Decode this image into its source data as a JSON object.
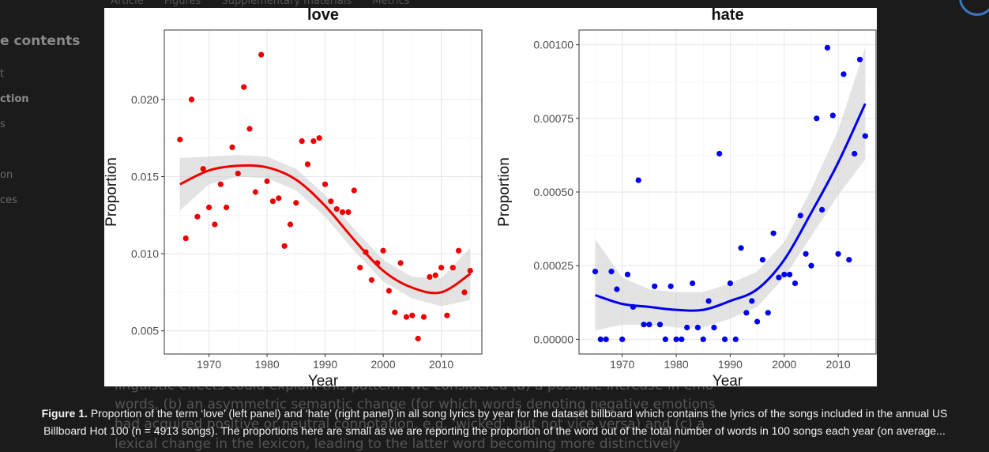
{
  "page": {
    "tabs": [
      "Article",
      "Figures",
      "Supplementary materials",
      "Metrics"
    ],
    "toc_title": "e contents",
    "toc_items": [
      "t",
      "ction",
      "s",
      "on",
      "ces"
    ],
    "ghost_lines": [
      "linguistic effects could explain this pattern. We considered (a) a possible increase in emo",
      "words, (b) an asymmetric semantic change (for which words denoting negative emotions",
      "had acquired positive or neutral connotation, e.g. 'wicked', but not vice versa) and (c) a",
      "lexical change in the lexicon, leading to the latter word becoming more distinctively"
    ]
  },
  "caption": {
    "label": "Figure 1.",
    "line1": " Proportion of the term ‘love’ (left panel) and ‘hate’ (right panel) in all song lyrics by year for the dataset billboard which contains the lyrics of the songs included in the annual US",
    "line2": "Billboard Hot 100 (n = 4913 songs). The proportions here are small as we are reporting the proportion of the word out of the total number of words in 100 songs each year (on average..."
  },
  "chart_data": [
    {
      "type": "scatter",
      "title": "love",
      "xlabel": "Year",
      "ylabel": "Proportion",
      "xlim": [
        1962,
        1967
      ],
      "ylim": [
        0.0035,
        0.0245
      ],
      "xticks": [
        1970,
        1980,
        1990,
        2000,
        2010
      ],
      "yticks": [
        0.005,
        0.01,
        0.015,
        0.02
      ],
      "ytick_labels": [
        "0.005",
        "0.010",
        "0.015",
        "0.020"
      ],
      "color": "#ee0000",
      "points": [
        [
          1965,
          0.0174
        ],
        [
          1966,
          0.011
        ],
        [
          1967,
          0.02
        ],
        [
          1968,
          0.0124
        ],
        [
          1969,
          0.0155
        ],
        [
          1970,
          0.013
        ],
        [
          1971,
          0.0119
        ],
        [
          1972,
          0.0145
        ],
        [
          1973,
          0.013
        ],
        [
          1974,
          0.0169
        ],
        [
          1975,
          0.0152
        ],
        [
          1976,
          0.0208
        ],
        [
          1977,
          0.0181
        ],
        [
          1978,
          0.014
        ],
        [
          1979,
          0.0229
        ],
        [
          1980,
          0.0147
        ],
        [
          1981,
          0.0134
        ],
        [
          1982,
          0.0136
        ],
        [
          1983,
          0.0105
        ],
        [
          1984,
          0.0119
        ],
        [
          1985,
          0.0133
        ],
        [
          1986,
          0.0173
        ],
        [
          1987,
          0.0158
        ],
        [
          1988,
          0.0173
        ],
        [
          1989,
          0.0175
        ],
        [
          1990,
          0.0145
        ],
        [
          1991,
          0.0134
        ],
        [
          1992,
          0.0129
        ],
        [
          1993,
          0.0127
        ],
        [
          1994,
          0.0127
        ],
        [
          1995,
          0.0141
        ],
        [
          1996,
          0.0091
        ],
        [
          1997,
          0.0101
        ],
        [
          1998,
          0.0083
        ],
        [
          1999,
          0.0094
        ],
        [
          2000,
          0.0102
        ],
        [
          2001,
          0.0076
        ],
        [
          2002,
          0.0062
        ],
        [
          2003,
          0.0094
        ],
        [
          2004,
          0.0059
        ],
        [
          2005,
          0.006
        ],
        [
          2006,
          0.0045
        ],
        [
          2007,
          0.0059
        ],
        [
          2008,
          0.0085
        ],
        [
          2009,
          0.0086
        ],
        [
          2010,
          0.0091
        ],
        [
          2011,
          0.006
        ],
        [
          2012,
          0.0091
        ],
        [
          2013,
          0.0102
        ],
        [
          2014,
          0.0075
        ],
        [
          2015,
          0.0089
        ]
      ],
      "smooth": {
        "color": "#ee0000",
        "x": [
          1965,
          1970,
          1975,
          1980,
          1985,
          1990,
          1995,
          2000,
          2005,
          2010,
          2015
        ],
        "y": [
          0.0145,
          0.0154,
          0.0157,
          0.0156,
          0.0148,
          0.0131,
          0.0109,
          0.0089,
          0.0078,
          0.0075,
          0.0087
        ],
        "band_low": [
          0.0128,
          0.0145,
          0.015,
          0.0149,
          0.0141,
          0.0124,
          0.0102,
          0.0082,
          0.0071,
          0.0066,
          0.007
        ],
        "band_high": [
          0.0162,
          0.0163,
          0.0164,
          0.0163,
          0.0155,
          0.0138,
          0.0116,
          0.0096,
          0.0085,
          0.0084,
          0.0104
        ]
      }
    },
    {
      "type": "scatter",
      "title": "hate",
      "xlabel": "Year",
      "ylabel": "Proportion",
      "xlim": [
        1962,
        2017
      ],
      "ylim": [
        -5e-05,
        0.00105
      ],
      "xticks": [
        1970,
        1980,
        1990,
        2000,
        2010
      ],
      "yticks": [
        0.0,
        0.00025,
        0.0005,
        0.00075,
        0.001
      ],
      "ytick_labels": [
        "0.00000",
        "0.00025",
        "0.00050",
        "0.00075",
        "0.00100"
      ],
      "color": "#0000ee",
      "points": [
        [
          1965,
          0.00023
        ],
        [
          1966,
          0.0
        ],
        [
          1967,
          0.0
        ],
        [
          1968,
          0.00023
        ],
        [
          1969,
          0.00017
        ],
        [
          1970,
          0.0
        ],
        [
          1971,
          0.00022
        ],
        [
          1972,
          0.00011
        ],
        [
          1973,
          0.00054
        ],
        [
          1974,
          5e-05
        ],
        [
          1975,
          5e-05
        ],
        [
          1976,
          0.00018
        ],
        [
          1977,
          5e-05
        ],
        [
          1978,
          0.0
        ],
        [
          1979,
          0.00018
        ],
        [
          1980,
          0.0
        ],
        [
          1981,
          0.0
        ],
        [
          1982,
          4e-05
        ],
        [
          1983,
          0.00019
        ],
        [
          1984,
          4e-05
        ],
        [
          1985,
          0.0
        ],
        [
          1986,
          0.00013
        ],
        [
          1987,
          4e-05
        ],
        [
          1988,
          0.00063
        ],
        [
          1989,
          0.0
        ],
        [
          1990,
          0.00019
        ],
        [
          1991,
          0.0
        ],
        [
          1992,
          0.00031
        ],
        [
          1993,
          9e-05
        ],
        [
          1994,
          0.00013
        ],
        [
          1995,
          6e-05
        ],
        [
          1996,
          0.00027
        ],
        [
          1997,
          9e-05
        ],
        [
          1998,
          0.00036
        ],
        [
          1999,
          0.00021
        ],
        [
          2000,
          0.00022
        ],
        [
          2001,
          0.00022
        ],
        [
          2002,
          0.00019
        ],
        [
          2003,
          0.00042
        ],
        [
          2004,
          0.00029
        ],
        [
          2005,
          0.00025
        ],
        [
          2006,
          0.00075
        ],
        [
          2007,
          0.00044
        ],
        [
          2008,
          0.00099
        ],
        [
          2009,
          0.00076
        ],
        [
          2010,
          0.00029
        ],
        [
          2011,
          0.0009
        ],
        [
          2012,
          0.00027
        ],
        [
          2013,
          0.00063
        ],
        [
          2014,
          0.00095
        ],
        [
          2015,
          0.00069
        ]
      ],
      "smooth": {
        "color": "#0000ee",
        "x": [
          1965,
          1970,
          1975,
          1980,
          1985,
          1990,
          1995,
          2000,
          2005,
          2010,
          2015
        ],
        "y": [
          0.00015,
          0.00012,
          0.00011,
          0.0001,
          0.0001,
          0.00013,
          0.00017,
          0.00027,
          0.00043,
          0.0006,
          0.0008
        ],
        "band_low": [
          3e-05,
          5e-05,
          5e-05,
          4e-05,
          4e-05,
          7e-05,
          0.00011,
          0.00021,
          0.00035,
          0.00049,
          0.00061
        ],
        "band_high": [
          0.00034,
          0.00021,
          0.00017,
          0.00016,
          0.00016,
          0.00019,
          0.00023,
          0.00033,
          0.00051,
          0.00071,
          0.00099
        ]
      }
    }
  ]
}
